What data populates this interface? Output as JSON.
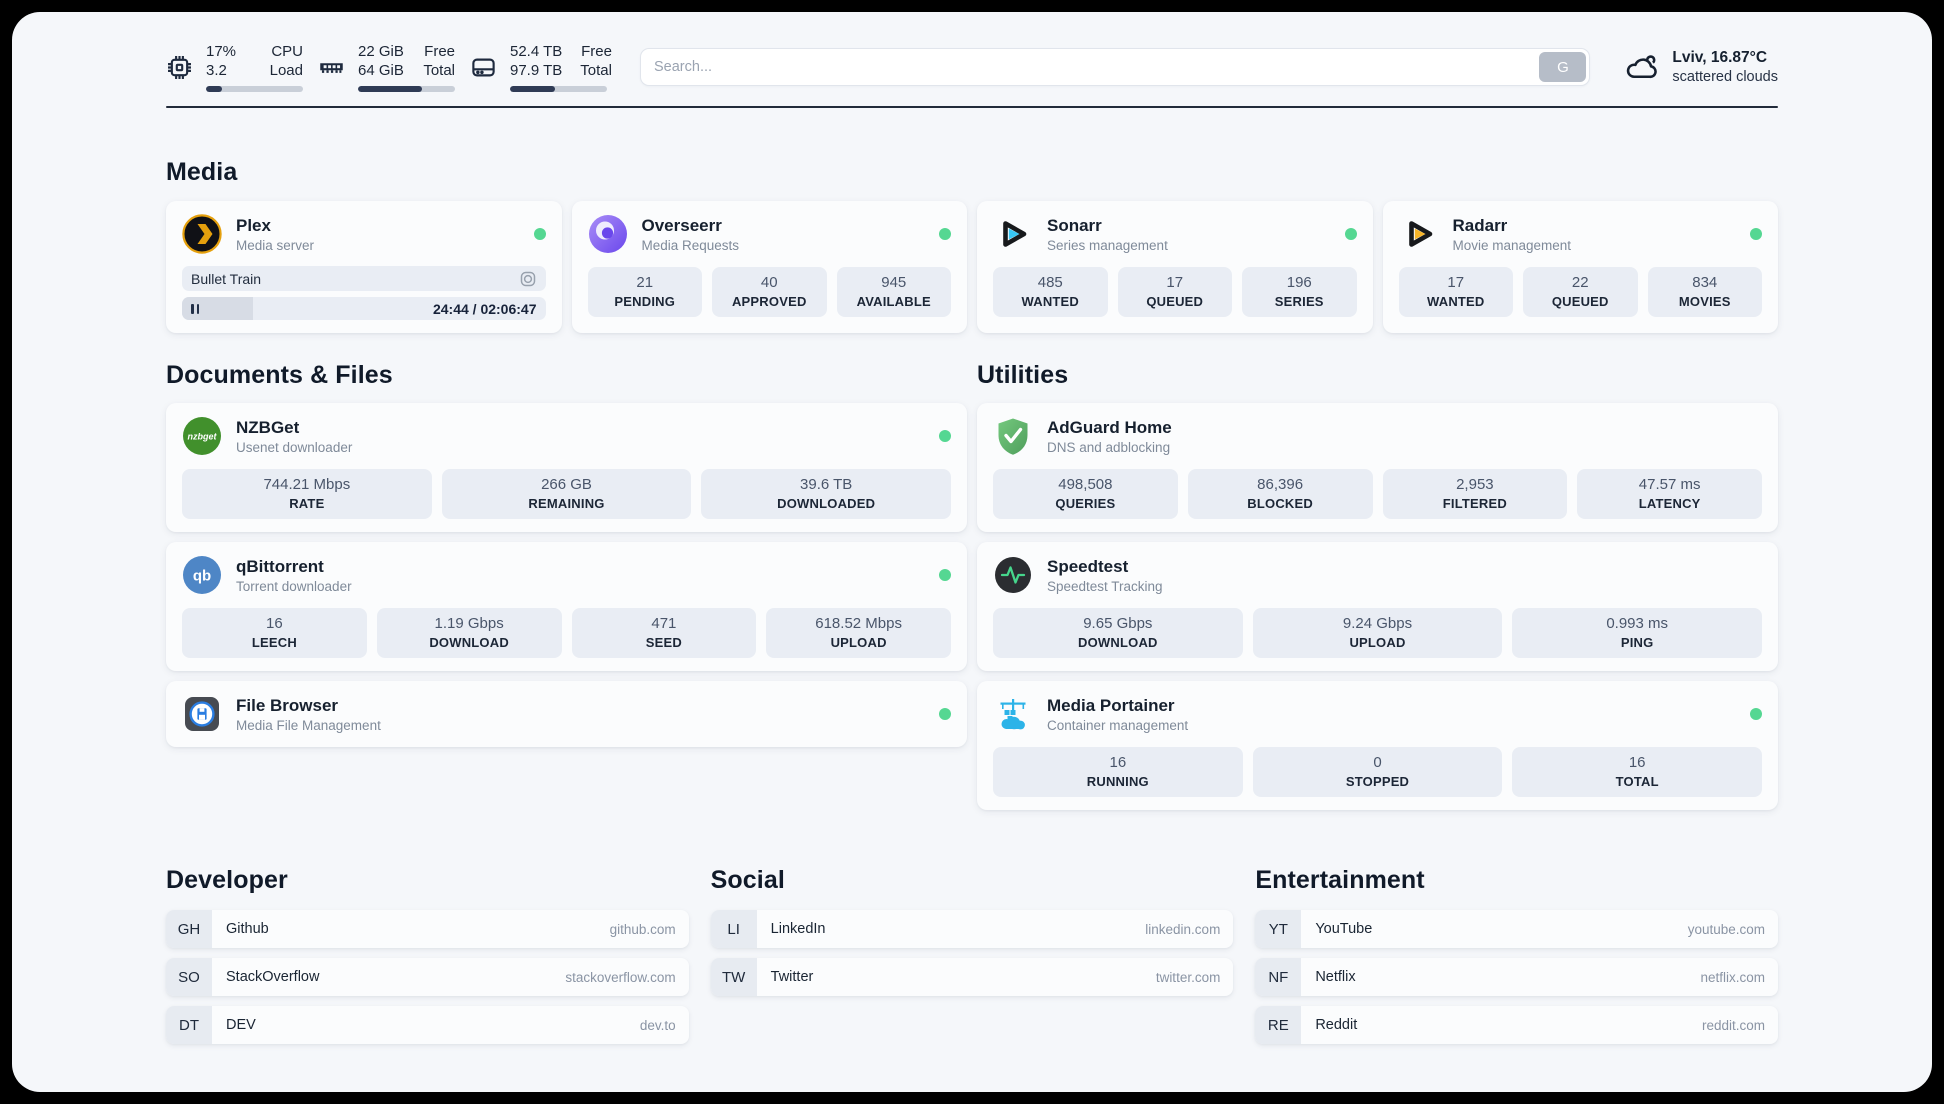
{
  "sysbar": {
    "stats": [
      {
        "icon": "cpu",
        "col1_top": "17%",
        "col1_bottom": "3.2",
        "col2_top": "CPU",
        "col2_bottom": "Load",
        "progress": 17
      },
      {
        "icon": "ram",
        "col1_top": "22 GiB",
        "col1_bottom": "64 GiB",
        "col2_top": "Free",
        "col2_bottom": "Total",
        "progress": 66
      },
      {
        "icon": "disk",
        "col1_top": "52.4 TB",
        "col1_bottom": "97.9 TB",
        "col2_top": "Free",
        "col2_bottom": "Total",
        "progress": 46
      }
    ],
    "search": {
      "placeholder": "Search...",
      "button_label": "G"
    },
    "weather": {
      "location": "Lviv, 16.87°C",
      "condition": "scattered clouds"
    }
  },
  "media": {
    "heading": "Media",
    "plex": {
      "name": "Plex",
      "subtitle": "Media server",
      "online": true,
      "now_playing": "Bullet Train",
      "time": "24:44 / 02:06:47",
      "progress": 19.5
    },
    "overseerr": {
      "name": "Overseerr",
      "subtitle": "Media Requests",
      "online": true,
      "stats": [
        {
          "value": "21",
          "label": "PENDING"
        },
        {
          "value": "40",
          "label": "APPROVED"
        },
        {
          "value": "945",
          "label": "AVAILABLE"
        }
      ]
    },
    "sonarr": {
      "name": "Sonarr",
      "subtitle": "Series management",
      "online": true,
      "stats": [
        {
          "value": "485",
          "label": "WANTED"
        },
        {
          "value": "17",
          "label": "QUEUED"
        },
        {
          "value": "196",
          "label": "SERIES"
        }
      ]
    },
    "radarr": {
      "name": "Radarr",
      "subtitle": "Movie management",
      "online": true,
      "stats": [
        {
          "value": "17",
          "label": "WANTED"
        },
        {
          "value": "22",
          "label": "QUEUED"
        },
        {
          "value": "834",
          "label": "MOVIES"
        }
      ]
    }
  },
  "documents": {
    "heading": "Documents & Files",
    "nzbget": {
      "name": "NZBGet",
      "subtitle": "Usenet downloader",
      "online": true,
      "stats": [
        {
          "value": "744.21 Mbps",
          "label": "RATE"
        },
        {
          "value": "266 GB",
          "label": "REMAINING"
        },
        {
          "value": "39.6 TB",
          "label": "DOWNLOADED"
        }
      ]
    },
    "qbittorrent": {
      "name": "qBittorrent",
      "subtitle": "Torrent downloader",
      "online": true,
      "stats": [
        {
          "value": "16",
          "label": "LEECH"
        },
        {
          "value": "1.19 Gbps",
          "label": "DOWNLOAD"
        },
        {
          "value": "471",
          "label": "SEED"
        },
        {
          "value": "618.52 Mbps",
          "label": "UPLOAD"
        }
      ]
    },
    "filebrowser": {
      "name": "File Browser",
      "subtitle": "Media File Management",
      "online": true
    }
  },
  "utilities": {
    "heading": "Utilities",
    "adguard": {
      "name": "AdGuard Home",
      "subtitle": "DNS and adblocking",
      "online": false,
      "stats": [
        {
          "value": "498,508",
          "label": "QUERIES"
        },
        {
          "value": "86,396",
          "label": "BLOCKED"
        },
        {
          "value": "2,953",
          "label": "FILTERED"
        },
        {
          "value": "47.57 ms",
          "label": "LATENCY"
        }
      ]
    },
    "speedtest": {
      "name": "Speedtest",
      "subtitle": "Speedtest Tracking",
      "online": false,
      "stats": [
        {
          "value": "9.65 Gbps",
          "label": "DOWNLOAD"
        },
        {
          "value": "9.24 Gbps",
          "label": "UPLOAD"
        },
        {
          "value": "0.993 ms",
          "label": "PING"
        }
      ]
    },
    "portainer": {
      "name": "Media Portainer",
      "subtitle": "Container management",
      "online": true,
      "stats": [
        {
          "value": "16",
          "label": "RUNNING"
        },
        {
          "value": "0",
          "label": "STOPPED"
        },
        {
          "value": "16",
          "label": "TOTAL"
        }
      ]
    }
  },
  "bookmarks": [
    {
      "heading": "Developer",
      "links": [
        {
          "abbr": "GH",
          "label": "Github",
          "url": "github.com"
        },
        {
          "abbr": "SO",
          "label": "StackOverflow",
          "url": "stackoverflow.com"
        },
        {
          "abbr": "DT",
          "label": "DEV",
          "url": "dev.to"
        }
      ]
    },
    {
      "heading": "Social",
      "links": [
        {
          "abbr": "LI",
          "label": "LinkedIn",
          "url": "linkedin.com"
        },
        {
          "abbr": "TW",
          "label": "Twitter",
          "url": "twitter.com"
        }
      ]
    },
    {
      "heading": "Entertainment",
      "links": [
        {
          "abbr": "YT",
          "label": "YouTube",
          "url": "youtube.com"
        },
        {
          "abbr": "NF",
          "label": "Netflix",
          "url": "netflix.com"
        },
        {
          "abbr": "RE",
          "label": "Reddit",
          "url": "reddit.com"
        }
      ]
    }
  ],
  "colors": {
    "status_online": "#55d792",
    "plex_amber": "#e5a00d",
    "overseerr_purple": "#7a5af8",
    "sonarr_cyan": "#37c6f4",
    "radarr_amber": "#f7b529",
    "nzbget_green": "#41902c",
    "adguard_green": "#5fb66e",
    "qbittorrent_blue": "#4e86c6",
    "speedtest_green": "#46d68c",
    "filebrowser_blue": "#2a7de1",
    "portainer_blue": "#2cb3e8",
    "accent_dark": "#2f3b55"
  }
}
